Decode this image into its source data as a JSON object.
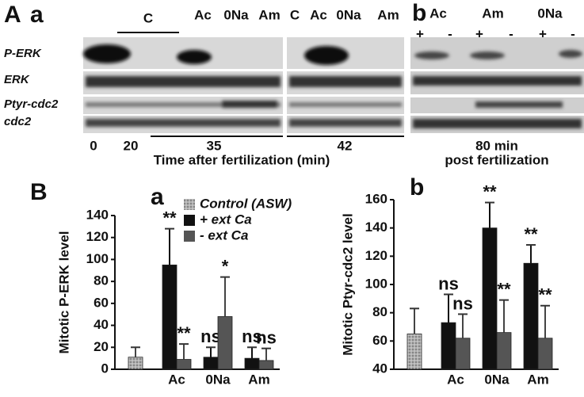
{
  "blots": {
    "panel_label": "A",
    "sub_a": "a",
    "sub_b": "b",
    "lanes_a": [
      "C",
      "Ac",
      "0Na",
      "Am",
      "C",
      "Ac",
      "0Na",
      "Am"
    ],
    "lanes_b": [
      "Ac",
      "Am",
      "0Na"
    ],
    "signs_b": [
      "+",
      "-",
      "+",
      "-",
      "+",
      "-"
    ],
    "rows": [
      "P-ERK",
      "ERK",
      "Ptyr-cdc2",
      "cdc2"
    ],
    "times": [
      "0",
      "20",
      "35",
      "42"
    ],
    "time_axis": "Time after fertilization (min)",
    "time_b": "80 min",
    "time_b_axis": "post fertilization"
  },
  "panel_label_b": "B",
  "chart_data": [
    {
      "type": "bar",
      "panel": "a",
      "y_label": "Mitotic P-ERK level",
      "categories": [
        null,
        "Ac",
        "0Na",
        "Am"
      ],
      "ylim": [
        0,
        140
      ],
      "yticks": [
        0,
        20,
        40,
        60,
        80,
        100,
        120,
        140
      ],
      "series": [
        {
          "name": "Control (ASW)",
          "color": "#a8a8a8",
          "values": [
            11,
            null,
            null,
            null
          ],
          "errors": [
            9,
            null,
            null,
            null
          ]
        },
        {
          "name": "+ ext Ca",
          "color": "#111111",
          "values": [
            null,
            95,
            11,
            10
          ],
          "errors": [
            null,
            33,
            9,
            10
          ],
          "significance": [
            null,
            "**",
            "ns",
            "ns"
          ]
        },
        {
          "name": "- ext Ca",
          "color": "#555555",
          "values": [
            null,
            9,
            48,
            8
          ],
          "errors": [
            null,
            14,
            36,
            11
          ],
          "significance": [
            null,
            "**",
            "*",
            "ns"
          ]
        }
      ]
    },
    {
      "type": "bar",
      "panel": "b",
      "y_label": "Mitotic Ptyr-cdc2 level",
      "categories": [
        null,
        "Ac",
        "0Na",
        "Am"
      ],
      "ylim": [
        40,
        160
      ],
      "yticks": [
        40,
        60,
        80,
        100,
        120,
        140,
        160
      ],
      "series": [
        {
          "color": "#a8a8a8",
          "values": [
            65,
            null,
            null,
            null
          ],
          "errors": [
            18,
            null,
            null,
            null
          ]
        },
        {
          "color": "#111111",
          "values": [
            null,
            73,
            140,
            115
          ],
          "errors": [
            null,
            20,
            18,
            13
          ],
          "significance": [
            null,
            "ns",
            "**",
            "**"
          ]
        },
        {
          "color": "#555555",
          "values": [
            null,
            62,
            66,
            62
          ],
          "errors": [
            null,
            17,
            23,
            23
          ],
          "significance": [
            null,
            "ns",
            "**",
            "**"
          ]
        }
      ]
    }
  ]
}
